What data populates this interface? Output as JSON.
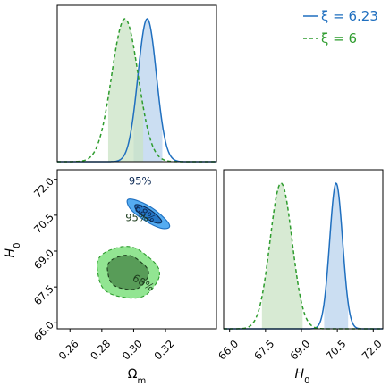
{
  "chart_data": {
    "type": "corner",
    "legend": {
      "placement": "top-right",
      "entries": [
        {
          "label": "ξ = 6.23",
          "color": "#1f6fbf",
          "linestyle": "solid"
        },
        {
          "label": "ξ = 6",
          "color": "#2e9c2e",
          "linestyle": "dashed"
        }
      ]
    },
    "colors": {
      "blue_line": "#1f6fbf",
      "blue_fill_inner": "#1f6fbf",
      "blue_fill_outer": "#42a3f0",
      "blue_shade": "#b9d3ee",
      "green_line": "#2e9c2e",
      "green_fill_inner": "#4a8a4a",
      "green_fill_outer": "#7fe07f",
      "green_shade": "#c9e3c4"
    },
    "params": [
      {
        "name": "Omega_m",
        "label": "Ωm",
        "label_main": "Ω",
        "label_sub": "m",
        "range": [
          0.252,
          0.352
        ],
        "ticks": [
          0.26,
          0.28,
          0.3,
          0.32
        ],
        "tick_labels": [
          "0.26",
          "0.28",
          "0.30",
          "0.32"
        ]
      },
      {
        "name": "H0",
        "label": "H0",
        "label_main": "H",
        "label_sub": "0",
        "range": [
          65.75,
          72.4
        ],
        "ticks": [
          66.0,
          67.5,
          69.0,
          70.5,
          72.0
        ],
        "tick_labels": [
          "66.0",
          "67.5",
          "69.0",
          "70.5",
          "72.0"
        ]
      }
    ],
    "series": [
      {
        "name": "ξ = 6.23",
        "key": "blue",
        "Omega_m": {
          "mean": 0.3085,
          "sigma": 0.0058,
          "shade": [
            0.3,
            0.318
          ]
        },
        "H0": {
          "mean": 70.45,
          "sigma": 0.27,
          "shade": [
            69.95,
            70.95
          ]
        },
        "contours": {
          "center": [
            0.309,
            70.55
          ],
          "rho": -0.82,
          "outer_scale": 2.3,
          "inner_scale": 1.45,
          "labels": [
            {
              "text": "95%",
              "at": [
                0.304,
                71.78
              ],
              "angle": 0
            },
            {
              "text": "68%",
              "at": [
                0.306,
                70.45
              ],
              "angle": 35
            }
          ]
        }
      },
      {
        "name": "ξ = 6",
        "key": "green",
        "Omega_m": {
          "mean": 0.2945,
          "sigma": 0.0083,
          "shade": [
            0.284,
            0.306
          ]
        },
        "H0": {
          "mean": 68.15,
          "sigma": 0.46,
          "shade": [
            67.35,
            69.05
          ]
        },
        "contours": {
          "center": [
            0.296,
            68.1
          ],
          "rho": -0.1,
          "outer_scale": 2.35,
          "inner_scale": 1.55,
          "labels": [
            {
              "text": "95%",
              "at": [
                0.302,
                70.25
              ],
              "angle": 0
            },
            {
              "text": "68%",
              "at": [
                0.305,
                67.55
              ],
              "angle": 30
            }
          ]
        }
      }
    ],
    "grid": false
  }
}
